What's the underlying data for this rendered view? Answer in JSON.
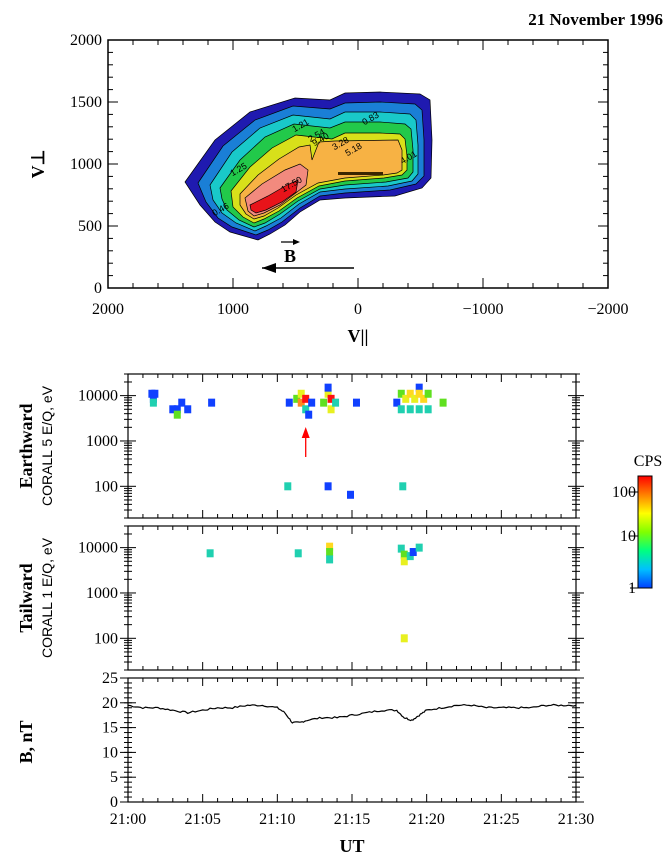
{
  "header": {
    "date": "21 November 1996"
  },
  "chart_data": [
    {
      "type": "contour",
      "xlabel": "V||",
      "ylabel": "V⊥",
      "xlim": [
        2000,
        -2000
      ],
      "ylim": [
        0,
        2000
      ],
      "xticks": [
        2000,
        1000,
        0,
        -1000,
        -2000
      ],
      "xtick_labels": [
        "2000",
        "1000",
        "0",
        "−1000",
        "−2000"
      ],
      "yticks": [
        0,
        500,
        1000,
        1500,
        2000
      ],
      "ytick_labels": [
        "0",
        "500",
        "1000",
        "1500",
        "2000"
      ],
      "contour_labels": [
        "0.83",
        "1.21",
        "2.54",
        "3.28",
        "5.18",
        "1.25",
        "17.50",
        "9.40",
        "0.46",
        "4.01"
      ],
      "annotation": {
        "label": "B",
        "direction": "toward positive V||"
      },
      "colors": [
        "#1f1ab0",
        "#1a7fd6",
        "#19c9c9",
        "#22c94a",
        "#d8e01a",
        "#f7b244",
        "#f28a7e",
        "#e8141a"
      ]
    },
    {
      "type": "scatter",
      "panel": "earthward",
      "ylabel": "Earthward",
      "ylabel_sub": "CORALL 5 E/Q, eV",
      "y_scale": "log",
      "ylim": [
        20,
        30000
      ],
      "yticks": [
        100,
        1000,
        10000
      ],
      "ytick_labels": [
        "100",
        "1000",
        "10000"
      ],
      "xlim": [
        "21:00",
        "21:30"
      ],
      "points": [
        {
          "t": "21:01.6",
          "e": 11000,
          "cps": 2
        },
        {
          "t": "21:01.8",
          "e": 11000,
          "cps": 2
        },
        {
          "t": "21:01.7",
          "e": 8500,
          "cps": 3
        },
        {
          "t": "21:01.7",
          "e": 7000,
          "cps": 8
        },
        {
          "t": "21:03.0",
          "e": 5000,
          "cps": 2
        },
        {
          "t": "21:03.3",
          "e": 5000,
          "cps": 3
        },
        {
          "t": "21:03.3",
          "e": 3800,
          "cps": 20
        },
        {
          "t": "21:03.6",
          "e": 7000,
          "cps": 2
        },
        {
          "t": "21:04.0",
          "e": 5000,
          "cps": 2
        },
        {
          "t": "21:05.6",
          "e": 7000,
          "cps": 2
        },
        {
          "t": "21:10.8",
          "e": 7000,
          "cps": 2
        },
        {
          "t": "21:11.3",
          "e": 8500,
          "cps": 20
        },
        {
          "t": "21:11.6",
          "e": 11000,
          "cps": 40
        },
        {
          "t": "21:11.6",
          "e": 7000,
          "cps": 100
        },
        {
          "t": "21:11.9",
          "e": 8500,
          "cps": 200
        },
        {
          "t": "21:11.9",
          "e": 5000,
          "cps": 8
        },
        {
          "t": "21:12.1",
          "e": 3800,
          "cps": 2
        },
        {
          "t": "21:12.3",
          "e": 7000,
          "cps": 2
        },
        {
          "t": "21:13.1",
          "e": 7000,
          "cps": 20
        },
        {
          "t": "21:13.4",
          "e": 11000,
          "cps": 40
        },
        {
          "t": "21:13.4",
          "e": 15000,
          "cps": 2
        },
        {
          "t": "21:13.6",
          "e": 8500,
          "cps": 200
        },
        {
          "t": "21:13.6",
          "e": 5000,
          "cps": 40
        },
        {
          "t": "21:13.9",
          "e": 7000,
          "cps": 8
        },
        {
          "t": "21:15.3",
          "e": 7000,
          "cps": 2
        },
        {
          "t": "21:18.0",
          "e": 7000,
          "cps": 2
        },
        {
          "t": "21:18.3",
          "e": 11000,
          "cps": 20
        },
        {
          "t": "21:18.3",
          "e": 5000,
          "cps": 8
        },
        {
          "t": "21:18.6",
          "e": 8500,
          "cps": 40
        },
        {
          "t": "21:18.9",
          "e": 11000,
          "cps": 60
        },
        {
          "t": "21:18.9",
          "e": 5000,
          "cps": 8
        },
        {
          "t": "21:19.2",
          "e": 8500,
          "cps": 40
        },
        {
          "t": "21:19.5",
          "e": 15000,
          "cps": 2
        },
        {
          "t": "21:19.5",
          "e": 11000,
          "cps": 60
        },
        {
          "t": "21:19.5",
          "e": 5000,
          "cps": 8
        },
        {
          "t": "21:19.8",
          "e": 8500,
          "cps": 60
        },
        {
          "t": "21:20.1",
          "e": 11000,
          "cps": 20
        },
        {
          "t": "21:20.1",
          "e": 5000,
          "cps": 8
        },
        {
          "t": "21:21.1",
          "e": 7000,
          "cps": 20
        },
        {
          "t": "21:10.7",
          "e": 100,
          "cps": 8
        },
        {
          "t": "21:13.4",
          "e": 100,
          "cps": 2
        },
        {
          "t": "21:14.9",
          "e": 65,
          "cps": 2
        },
        {
          "t": "21:18.4",
          "e": 100,
          "cps": 8
        }
      ],
      "annotation": {
        "type": "arrow",
        "t": "21:11.9",
        "e": 1000,
        "color": "#ff0000"
      }
    },
    {
      "type": "scatter",
      "panel": "tailward",
      "ylabel": "Tailward",
      "ylabel_sub": "CORALL 1 E/Q, eV",
      "y_scale": "log",
      "ylim": [
        20,
        30000
      ],
      "yticks": [
        100,
        1000,
        10000
      ],
      "ytick_labels": [
        "100",
        "1000",
        "10000"
      ],
      "xlim": [
        "21:00",
        "21:30"
      ],
      "points": [
        {
          "t": "21:05.5",
          "e": 7500,
          "cps": 8
        },
        {
          "t": "21:11.4",
          "e": 7500,
          "cps": 8
        },
        {
          "t": "21:13.5",
          "e": 10500,
          "cps": 60
        },
        {
          "t": "21:13.5",
          "e": 8000,
          "cps": 20
        },
        {
          "t": "21:13.5",
          "e": 5500,
          "cps": 8
        },
        {
          "t": "21:18.3",
          "e": 9500,
          "cps": 8
        },
        {
          "t": "21:18.5",
          "e": 7000,
          "cps": 20
        },
        {
          "t": "21:18.5",
          "e": 5000,
          "cps": 40
        },
        {
          "t": "21:18.9",
          "e": 6500,
          "cps": 8
        },
        {
          "t": "21:19.1",
          "e": 8000,
          "cps": 2
        },
        {
          "t": "21:19.5",
          "e": 10000,
          "cps": 8
        },
        {
          "t": "21:18.5",
          "e": 100,
          "cps": 40
        }
      ]
    },
    {
      "type": "line",
      "panel": "field",
      "ylabel": "B, nT",
      "ylim": [
        0,
        25
      ],
      "yticks": [
        0,
        5,
        10,
        15,
        20,
        25
      ],
      "ytick_labels": [
        "0",
        "5",
        "10",
        "15",
        "20",
        "25"
      ],
      "xlim": [
        "21:00",
        "21:30"
      ],
      "xticks": [
        "21:00",
        "21:05",
        "21:10",
        "21:15",
        "21:20",
        "21:25",
        "21:30"
      ],
      "xtick_labels": [
        "21:00",
        "21:05",
        "21:10",
        "21:15",
        "21:20",
        "21:25",
        "21:30"
      ],
      "xlabel": "UT",
      "x_minutes": [
        0,
        1,
        2,
        3,
        4,
        5,
        6,
        7,
        8,
        9,
        10,
        10.5,
        11,
        11.5,
        12,
        13,
        14,
        15,
        16,
        17,
        18,
        18.5,
        19,
        19.5,
        20,
        21,
        22,
        23,
        24,
        25,
        26,
        27,
        28,
        29,
        30
      ],
      "values": [
        19.5,
        19,
        19,
        18.5,
        18,
        18.5,
        19,
        19,
        19.5,
        19.5,
        19,
        18,
        16,
        16,
        16.5,
        17,
        17,
        17.5,
        18,
        18.5,
        18.5,
        17,
        16.5,
        17.5,
        18.5,
        19,
        19.5,
        19.5,
        19,
        19,
        19,
        19,
        19.5,
        19.5,
        19.5
      ]
    }
  ],
  "colorbar": {
    "label": "CPS",
    "ticks": [
      "100",
      "10",
      "1"
    ],
    "colors": [
      "#ff0000",
      "#ff8000",
      "#ffff00",
      "#80ff00",
      "#00ff80",
      "#00c0ff",
      "#0040ff"
    ]
  }
}
